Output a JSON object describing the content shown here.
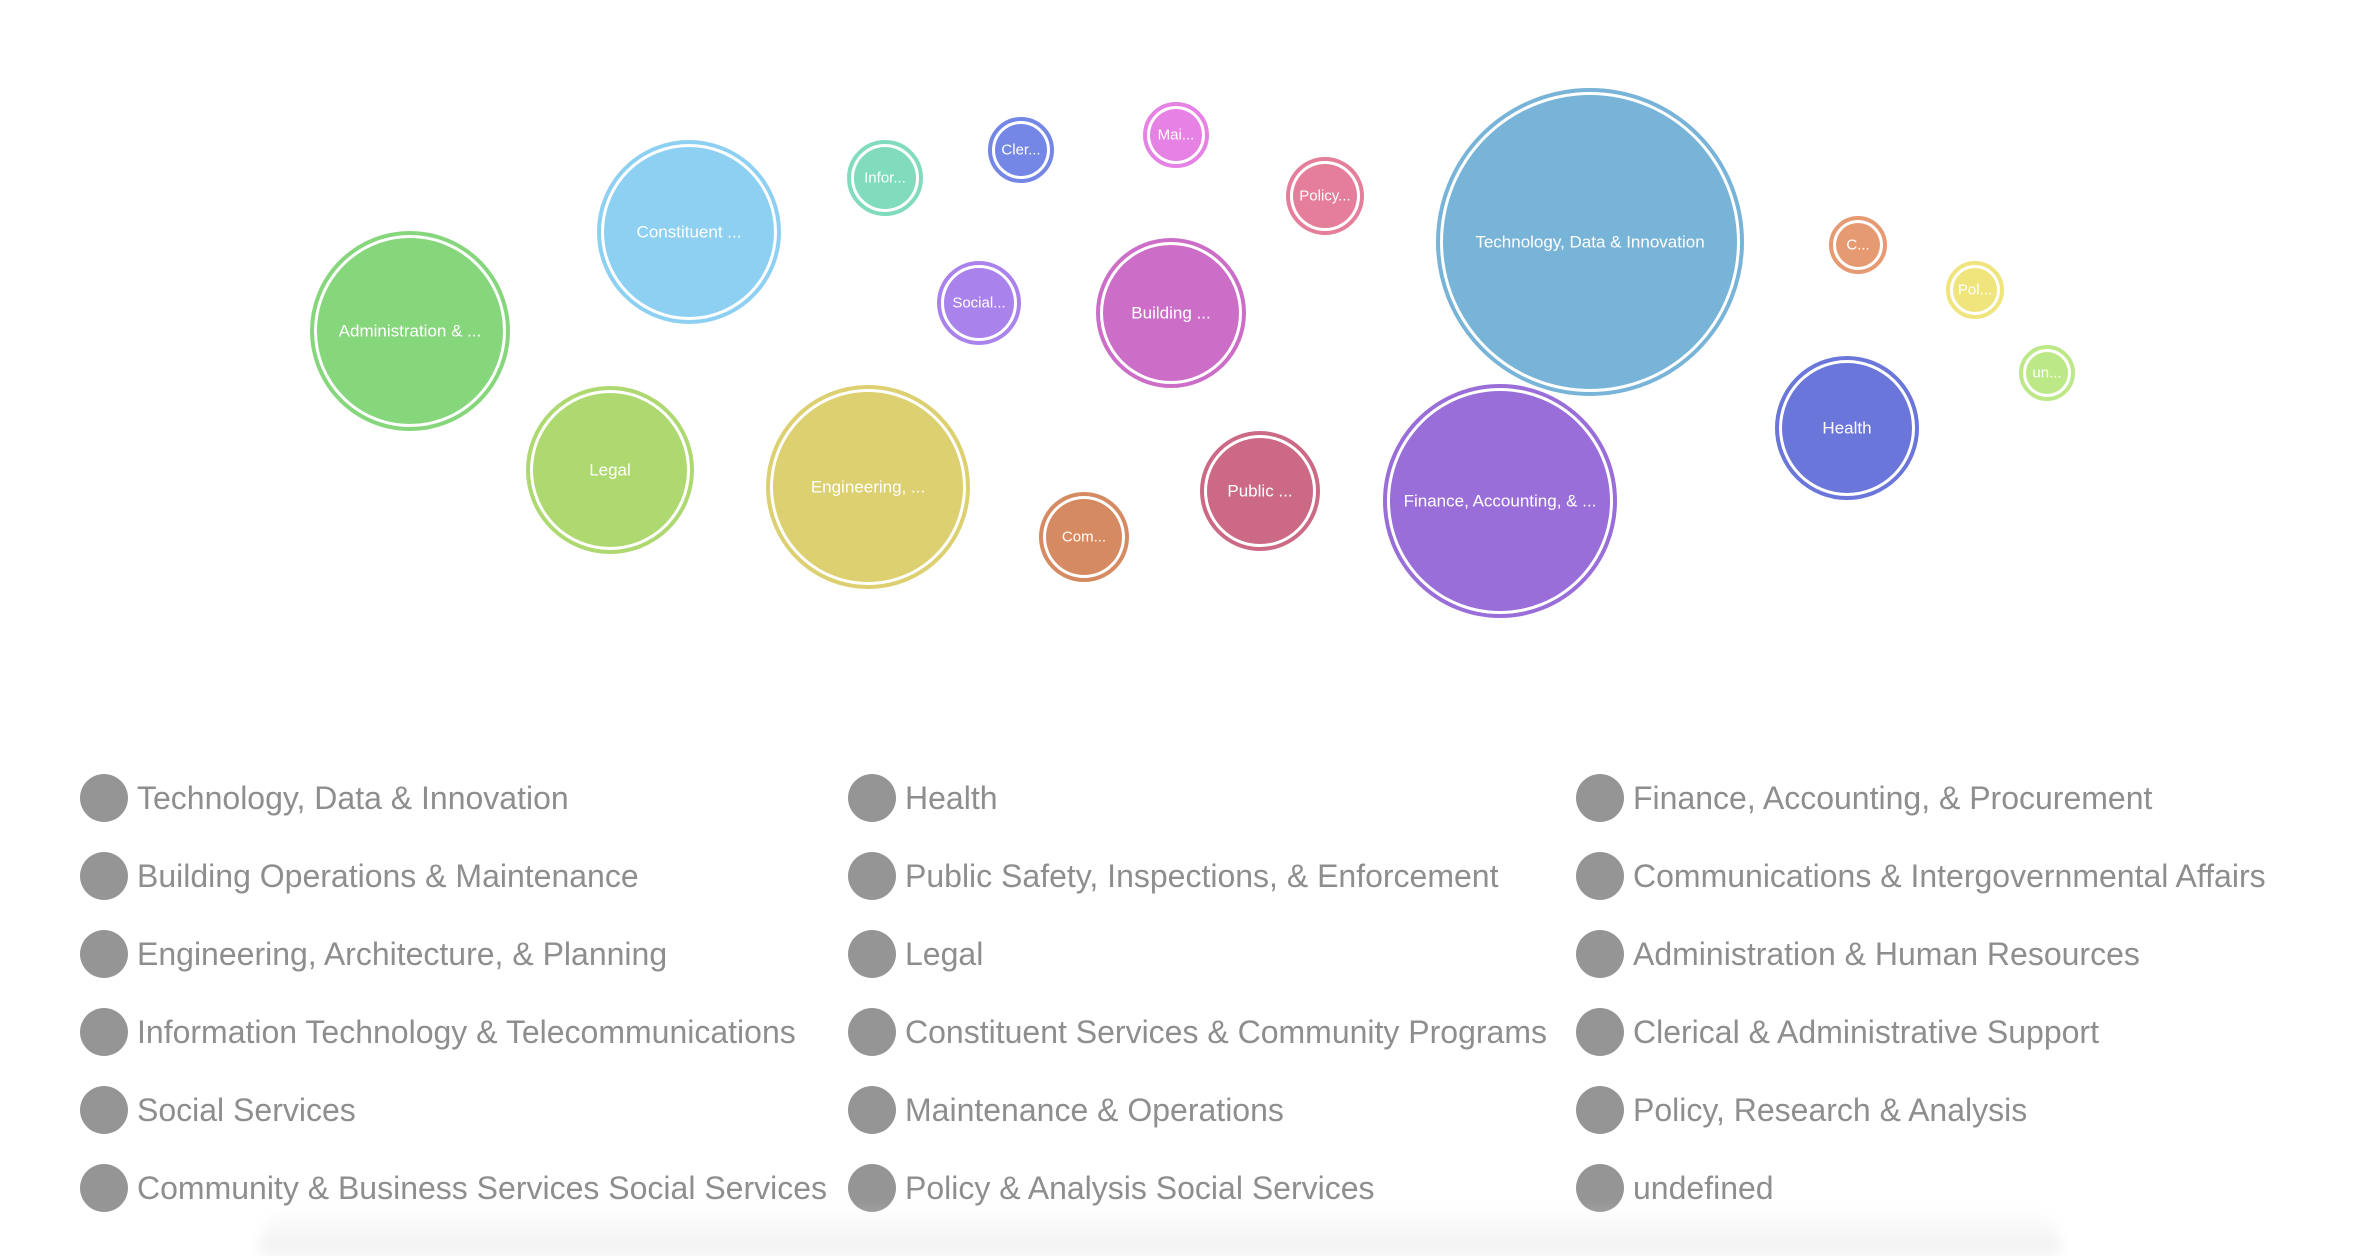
{
  "chart_data": {
    "type": "bubble",
    "bubbles": [
      {
        "label": "Technology, Data & Innovation",
        "color": "#78b4d8"
      },
      {
        "label": "Finance, Accounting, & ...",
        "color": "#9a6ed8"
      },
      {
        "label": "Engineering, ...",
        "color": "#dcd070"
      },
      {
        "label": "Administration & ...",
        "color": "#86d67c"
      },
      {
        "label": "Constituent ...",
        "color": "#8ed0f2"
      },
      {
        "label": "Health",
        "color": "#6a76da"
      },
      {
        "label": "Building ...",
        "color": "#cc6ec8"
      },
      {
        "label": "Legal",
        "color": "#aed870"
      },
      {
        "label": "Public ...",
        "color": "#cc6a86"
      },
      {
        "label": "Com...",
        "color": "#d68a62"
      },
      {
        "label": "Social...",
        "color": "#aa82ec"
      },
      {
        "label": "Policy...",
        "color": "#e47e9a"
      },
      {
        "label": "Infor...",
        "color": "#80dcbc"
      },
      {
        "label": "Cler...",
        "color": "#7486e6"
      },
      {
        "label": "Mai...",
        "color": "#e682e4"
      },
      {
        "label": "C...",
        "color": "#e69a72"
      },
      {
        "label": "Pol...",
        "color": "#f0e47c"
      },
      {
        "label": "un...",
        "color": "#bde888"
      }
    ]
  },
  "legend": {
    "columns": [
      [
        "Technology, Data & Innovation",
        "Building Operations & Maintenance",
        "Engineering, Architecture, & Planning",
        "Information Technology & Telecommunications",
        "Social Services",
        "Community & Business Services Social Services"
      ],
      [
        "Health",
        "Public Safety, Inspections, & Enforcement",
        "Legal",
        "Constituent Services & Community Programs",
        "Maintenance & Operations",
        "Policy & Analysis Social Services"
      ],
      [
        "Finance, Accounting, & Procurement",
        "Communications & Intergovernmental Affairs",
        "Administration & Human Resources",
        "Clerical & Administrative Support",
        "Policy, Research & Analysis",
        "undefined"
      ]
    ],
    "dot_color": "#959595"
  }
}
